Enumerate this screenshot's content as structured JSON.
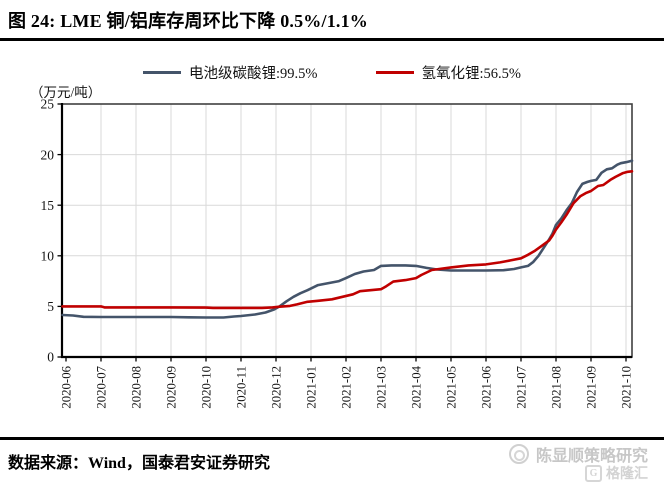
{
  "header": {
    "title": "图 24:  LME 铜/铝库存周环比下降 0.5%/1.1%"
  },
  "legend": {
    "items": [
      {
        "label": "电池级碳酸锂:99.5%",
        "color": "#44546A"
      },
      {
        "label": "氢氧化锂:56.5%",
        "color": "#C00000"
      }
    ]
  },
  "chart_data": {
    "type": "line",
    "title": "",
    "unit_label": "（万元/吨）",
    "xlabel": "",
    "ylabel": "万元/吨",
    "grid": true,
    "legend_position": "top-center",
    "y_axis": {
      "min": 0,
      "max": 25,
      "ticks": [
        0,
        5,
        10,
        15,
        20,
        25
      ]
    },
    "x_axis": {
      "tick_labels": [
        "2020-06",
        "2020-07",
        "2020-08",
        "2020-09",
        "2020-10",
        "2020-11",
        "2020-12",
        "2021-01",
        "2021-02",
        "2021-03",
        "2021-04",
        "2021-05",
        "2021-06",
        "2021-07",
        "2021-08",
        "2021-09",
        "2021-10"
      ],
      "note": "series x values are months after 2020-06"
    },
    "series": [
      {
        "name": "电池级碳酸锂:99.5%",
        "color": "#44546A",
        "points": [
          [
            -0.1,
            4.15
          ],
          [
            0.2,
            4.1
          ],
          [
            0.5,
            3.97
          ],
          [
            1,
            3.95
          ],
          [
            1.5,
            3.95
          ],
          [
            2,
            3.95
          ],
          [
            2.5,
            3.95
          ],
          [
            3,
            3.95
          ],
          [
            3.5,
            3.92
          ],
          [
            4,
            3.9
          ],
          [
            4.5,
            3.9
          ],
          [
            4.8,
            4.0
          ],
          [
            5,
            4.05
          ],
          [
            5.4,
            4.2
          ],
          [
            5.7,
            4.4
          ],
          [
            5.95,
            4.7
          ],
          [
            6.1,
            5.0
          ],
          [
            6.3,
            5.5
          ],
          [
            6.5,
            5.95
          ],
          [
            6.7,
            6.3
          ],
          [
            6.9,
            6.6
          ],
          [
            7.2,
            7.1
          ],
          [
            7.5,
            7.3
          ],
          [
            7.8,
            7.5
          ],
          [
            8,
            7.8
          ],
          [
            8.25,
            8.2
          ],
          [
            8.5,
            8.45
          ],
          [
            8.8,
            8.6
          ],
          [
            9,
            9.0
          ],
          [
            9.3,
            9.05
          ],
          [
            9.7,
            9.05
          ],
          [
            10,
            9.0
          ],
          [
            10.3,
            8.8
          ],
          [
            10.6,
            8.65
          ],
          [
            11,
            8.55
          ],
          [
            11.5,
            8.55
          ],
          [
            12,
            8.55
          ],
          [
            12.5,
            8.58
          ],
          [
            12.8,
            8.7
          ],
          [
            13,
            8.85
          ],
          [
            13.2,
            9.0
          ],
          [
            13.35,
            9.4
          ],
          [
            13.5,
            10.0
          ],
          [
            13.65,
            10.8
          ],
          [
            13.8,
            11.6
          ],
          [
            13.9,
            12.2
          ],
          [
            14,
            13.05
          ],
          [
            14.15,
            13.7
          ],
          [
            14.3,
            14.5
          ],
          [
            14.45,
            15.2
          ],
          [
            14.6,
            16.3
          ],
          [
            14.75,
            17.1
          ],
          [
            14.9,
            17.3
          ],
          [
            15,
            17.4
          ],
          [
            15.15,
            17.5
          ],
          [
            15.3,
            18.2
          ],
          [
            15.45,
            18.55
          ],
          [
            15.6,
            18.65
          ],
          [
            15.75,
            19.0
          ],
          [
            15.85,
            19.15
          ],
          [
            16,
            19.25
          ],
          [
            16.17,
            19.4
          ]
        ]
      },
      {
        "name": "氢氧化锂:56.5%",
        "color": "#C00000",
        "points": [
          [
            -0.1,
            5.0
          ],
          [
            0.5,
            5.0
          ],
          [
            1,
            5.0
          ],
          [
            1.1,
            4.9
          ],
          [
            2,
            4.9
          ],
          [
            3,
            4.9
          ],
          [
            4,
            4.88
          ],
          [
            4.2,
            4.85
          ],
          [
            5,
            4.85
          ],
          [
            5.6,
            4.85
          ],
          [
            5.9,
            4.9
          ],
          [
            6.1,
            4.97
          ],
          [
            6.4,
            5.05
          ],
          [
            6.6,
            5.2
          ],
          [
            6.9,
            5.45
          ],
          [
            7.2,
            5.55
          ],
          [
            7.6,
            5.7
          ],
          [
            7.9,
            5.95
          ],
          [
            8.2,
            6.2
          ],
          [
            8.4,
            6.5
          ],
          [
            8.7,
            6.6
          ],
          [
            9,
            6.7
          ],
          [
            9.15,
            7.0
          ],
          [
            9.35,
            7.45
          ],
          [
            9.7,
            7.6
          ],
          [
            10,
            7.8
          ],
          [
            10.15,
            8.1
          ],
          [
            10.45,
            8.6
          ],
          [
            11,
            8.85
          ],
          [
            11.5,
            9.05
          ],
          [
            12,
            9.15
          ],
          [
            12.4,
            9.35
          ],
          [
            12.7,
            9.55
          ],
          [
            13,
            9.75
          ],
          [
            13.2,
            10.1
          ],
          [
            13.4,
            10.5
          ],
          [
            13.6,
            11.0
          ],
          [
            13.8,
            11.5
          ],
          [
            13.9,
            12.0
          ],
          [
            14,
            12.6
          ],
          [
            14.15,
            13.3
          ],
          [
            14.3,
            14.05
          ],
          [
            14.5,
            15.2
          ],
          [
            14.7,
            15.9
          ],
          [
            14.85,
            16.2
          ],
          [
            15,
            16.4
          ],
          [
            15.2,
            16.9
          ],
          [
            15.35,
            17.0
          ],
          [
            15.55,
            17.5
          ],
          [
            15.7,
            17.8
          ],
          [
            15.9,
            18.15
          ],
          [
            16.05,
            18.3
          ],
          [
            16.17,
            18.35
          ]
        ]
      }
    ],
    "colors": {
      "grid": "#D9D9D9",
      "axis": "#000000",
      "border": "#404040",
      "tick_text": "#141414"
    }
  },
  "footer": {
    "source": "数据来源：Wind，国泰君安证券研究"
  },
  "watermark": {
    "name": "陈显顺策略研究",
    "brand": "格隆汇",
    "brand_glyph": "G"
  }
}
